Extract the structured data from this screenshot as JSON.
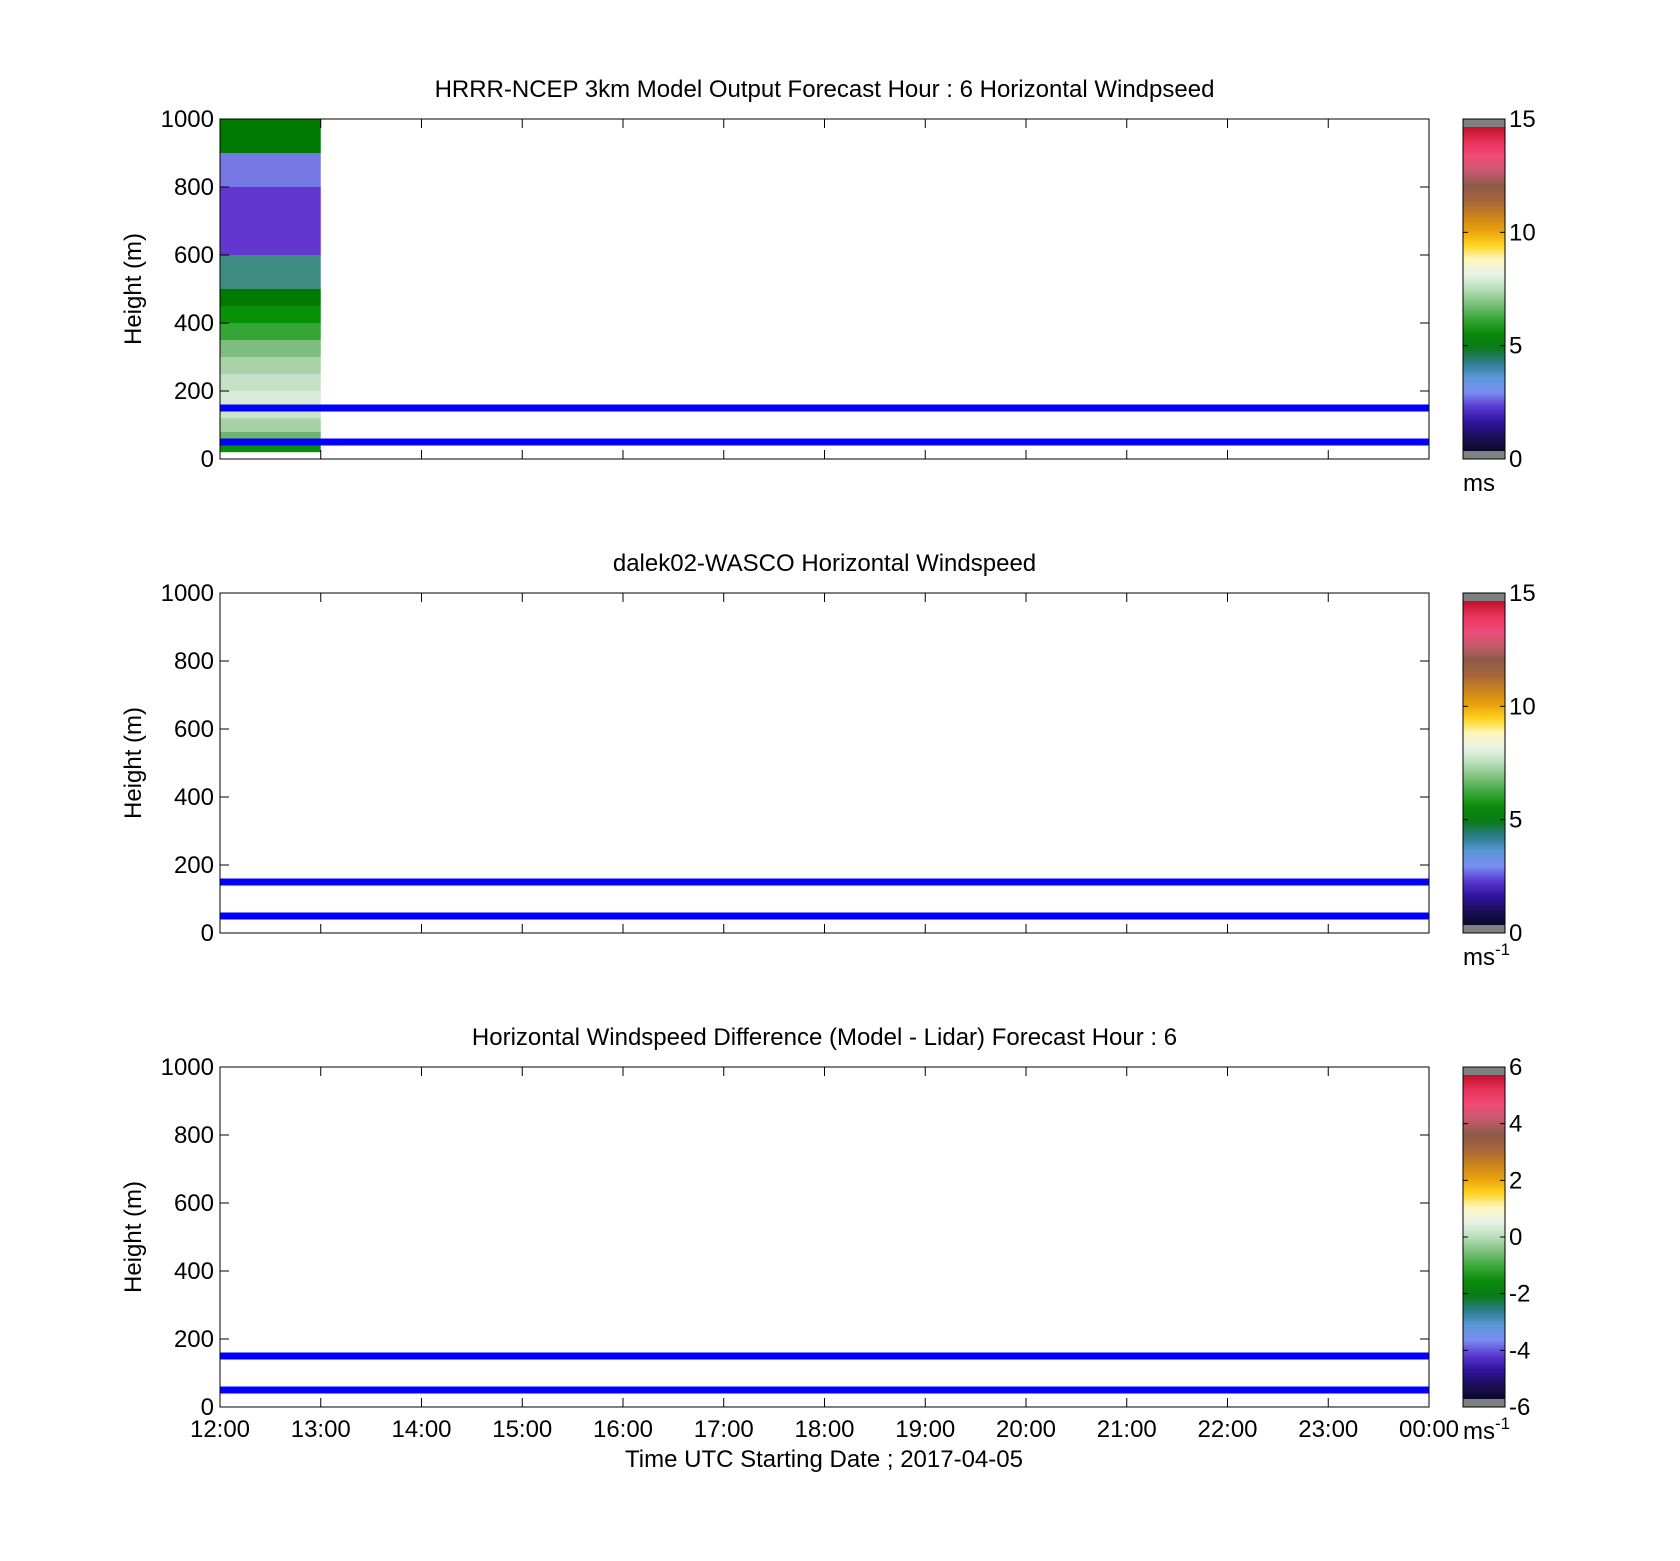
{
  "figure": {
    "xlabel": "Time UTC  Starting Date ; 2017-04-05",
    "x_tick_labels": [
      "12:00",
      "13:00",
      "14:00",
      "15:00",
      "16:00",
      "17:00",
      "18:00",
      "19:00",
      "20:00",
      "21:00",
      "22:00",
      "23:00",
      "00:00"
    ]
  },
  "chart_data": [
    {
      "type": "heatmap",
      "title": "HRRR-NCEP 3km Model Output   Forecast Hour : 6 Horizontal Windpseed",
      "ylabel": "Height (m)",
      "xlim": [
        "12:00",
        "00:00"
      ],
      "ylim": [
        0,
        1000
      ],
      "y_ticks": [
        0,
        200,
        400,
        600,
        800,
        1000
      ],
      "grid": false,
      "reference_lines_m": [
        50,
        150
      ],
      "colorbar": {
        "ticks": [
          0,
          5,
          10,
          15
        ],
        "range": [
          0,
          15
        ],
        "unit": "ms",
        "unit_sup": ""
      },
      "cells": {
        "x_start": "12:00",
        "x_end": "13:00",
        "bands": [
          {
            "y0": 900,
            "y1": 1000,
            "color": "#007a00"
          },
          {
            "y0": 800,
            "y1": 900,
            "color": "#7678e4"
          },
          {
            "y0": 600,
            "y1": 800,
            "color": "#6336d0"
          },
          {
            "y0": 500,
            "y1": 600,
            "color": "#3e8c82"
          },
          {
            "y0": 450,
            "y1": 500,
            "color": "#007a00"
          },
          {
            "y0": 400,
            "y1": 450,
            "color": "#069106"
          },
          {
            "y0": 350,
            "y1": 400,
            "color": "#35a635"
          },
          {
            "y0": 300,
            "y1": 350,
            "color": "#7fbd7f"
          },
          {
            "y0": 250,
            "y1": 300,
            "color": "#a9d2a9"
          },
          {
            "y0": 200,
            "y1": 250,
            "color": "#c5e0c5"
          },
          {
            "y0": 150,
            "y1": 200,
            "color": "#d8ead8"
          },
          {
            "y0": 120,
            "y1": 150,
            "color": "#cbe4cb"
          },
          {
            "y0": 80,
            "y1": 120,
            "color": "#a6d0a6"
          },
          {
            "y0": 55,
            "y1": 80,
            "color": "#6eb56e"
          },
          {
            "y0": 20,
            "y1": 45,
            "color": "#088f08"
          }
        ]
      }
    },
    {
      "type": "heatmap",
      "title": "dalek02-WASCO  Horizontal Windspeed",
      "ylabel": "Height (m)",
      "xlim": [
        "12:00",
        "00:00"
      ],
      "ylim": [
        0,
        1000
      ],
      "y_ticks": [
        0,
        200,
        400,
        600,
        800,
        1000
      ],
      "grid": false,
      "reference_lines_m": [
        50,
        150
      ],
      "colorbar": {
        "ticks": [
          0,
          5,
          10,
          15
        ],
        "range": [
          0,
          15
        ],
        "unit": "ms",
        "unit_sup": "-1"
      },
      "cells": null
    },
    {
      "type": "heatmap",
      "title": "Horizontal Windspeed Difference (Model - Lidar) Forecast Hour : 6",
      "ylabel": "Height (m)",
      "xlim": [
        "12:00",
        "00:00"
      ],
      "ylim": [
        0,
        1000
      ],
      "y_ticks": [
        0,
        200,
        400,
        600,
        800,
        1000
      ],
      "grid": false,
      "reference_lines_m": [
        50,
        150
      ],
      "colorbar": {
        "ticks": [
          -6,
          -4,
          -2,
          0,
          2,
          4,
          6
        ],
        "range": [
          -6,
          6
        ],
        "unit": "ms",
        "unit_sup": "-1"
      },
      "cells": null
    }
  ],
  "colormap": [
    "#0a0a2a",
    "#1d0f5c",
    "#2f14a0",
    "#5a3ad2",
    "#7a8ef0",
    "#5a98d8",
    "#2e7c8c",
    "#0a7a1a",
    "#0a8a0a",
    "#3aa83a",
    "#7cc07c",
    "#b8deb8",
    "#e8f2e8",
    "#fff7c0",
    "#ffd21e",
    "#e8a00a",
    "#c8821e",
    "#a6643c",
    "#8c5a48",
    "#c85a6e",
    "#f04a78",
    "#e8325a",
    "#c0102a"
  ],
  "colors": {
    "reference_line": "#0000ff",
    "axes": "#000000",
    "colorbar_end": "#808080"
  }
}
